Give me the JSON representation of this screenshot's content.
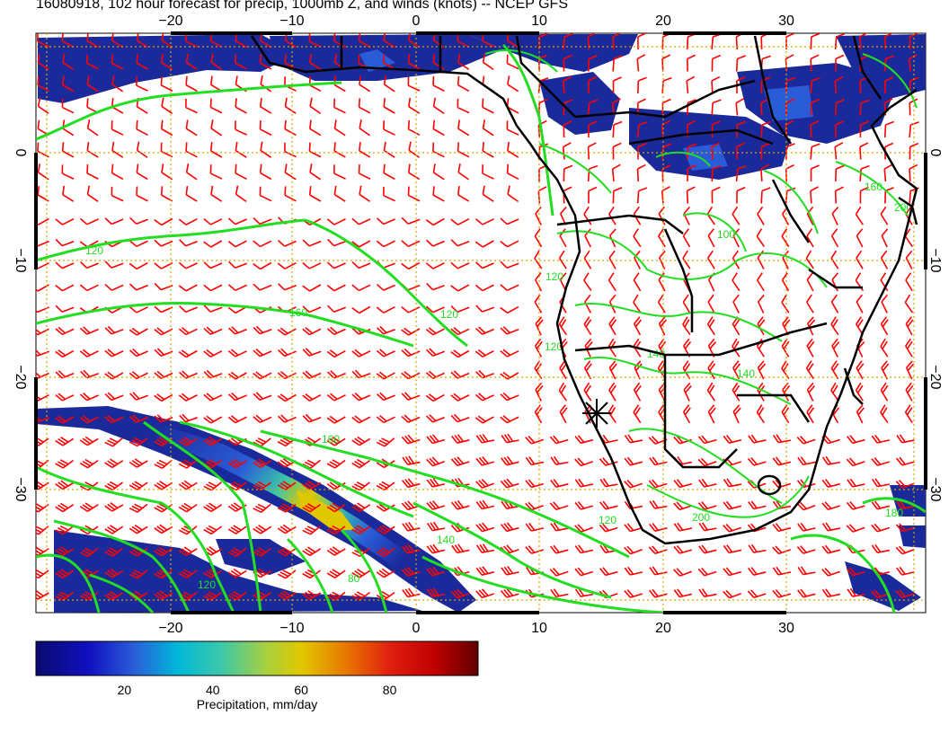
{
  "title": "16080918, 102 hour forecast for precip, 1000mb Z, and winds (knots) -- NCEP GFS",
  "map": {
    "lon_range": [
      -30,
      42
    ],
    "lat_range": [
      -40,
      10
    ],
    "lon_ticks": [
      "−20",
      "−10",
      "0",
      "10",
      "20",
      "30"
    ],
    "lat_ticks": [
      "0",
      "−10",
      "−20",
      "−30"
    ],
    "contour_labels": [
      "120",
      "160",
      "120",
      "160",
      "140",
      "80",
      "120",
      "100",
      "120",
      "140",
      "140",
      "120",
      "160",
      "200",
      "180",
      "120",
      "200"
    ],
    "colors": {
      "coast": "#000000",
      "contour": "#22dd22",
      "wind_barb": "#ff0000",
      "grid": "#d4a500",
      "precip_low": "#1a2a9a"
    }
  },
  "colorbar": {
    "labels": [
      "20",
      "40",
      "60",
      "80"
    ],
    "values": [
      20,
      40,
      60,
      80
    ],
    "range": [
      0,
      100
    ],
    "title": "Precipitation, mm/day"
  }
}
